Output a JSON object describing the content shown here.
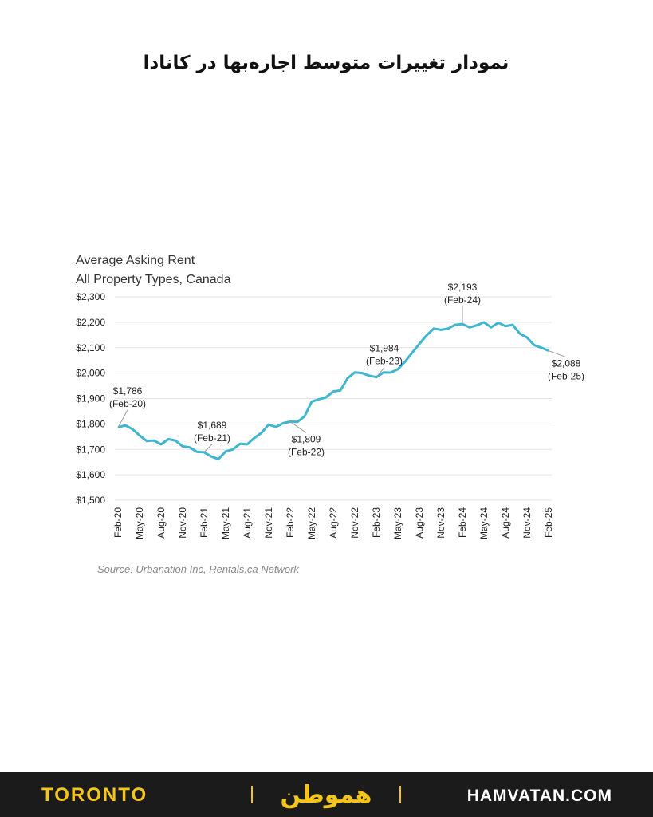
{
  "header": {
    "title": "نمودار تغییرات متوسط اجاره‌بها در کانادا"
  },
  "chart_data": {
    "type": "line",
    "title": "Average Asking Rent",
    "subtitle": "All Property Types, Canada",
    "categories": [
      "Feb-20",
      null,
      null,
      "May-20",
      null,
      null,
      "Aug-20",
      null,
      null,
      "Nov-20",
      null,
      null,
      "Feb-21",
      null,
      null,
      "May-21",
      null,
      null,
      "Aug-21",
      null,
      null,
      "Nov-21",
      null,
      null,
      "Feb-22",
      null,
      null,
      "May-22",
      null,
      null,
      "Aug-22",
      null,
      null,
      "Nov-22",
      null,
      null,
      "Feb-23",
      null,
      null,
      "May-23",
      null,
      null,
      "Aug-23",
      null,
      null,
      "Nov-23",
      null,
      null,
      "Feb-24",
      null,
      null,
      "May-24",
      null,
      null,
      "Aug-24",
      null,
      null,
      "Nov-24",
      null,
      null,
      "Feb-25"
    ],
    "series": [
      {
        "name": "Average Asking Rent",
        "color": "#3fb6d0",
        "values": [
          1786,
          1795,
          1780,
          1755,
          1733,
          1735,
          1720,
          1740,
          1735,
          1712,
          1708,
          1690,
          1689,
          1672,
          1662,
          1692,
          1700,
          1722,
          1720,
          1745,
          1765,
          1798,
          1788,
          1803,
          1809,
          1808,
          1830,
          1888,
          1897,
          1905,
          1928,
          1932,
          1980,
          2003,
          2000,
          1990,
          1984,
          2003,
          2002,
          2015,
          2045,
          2080,
          2115,
          2148,
          2175,
          2170,
          2175,
          2190,
          2193,
          2180,
          2188,
          2200,
          2180,
          2198,
          2185,
          2190,
          2155,
          2140,
          2110,
          2100,
          2088
        ]
      }
    ],
    "ylim": [
      1500,
      2300
    ],
    "yticks": [
      {
        "value": 1500,
        "label": "$1,500"
      },
      {
        "value": 1600,
        "label": "$1,600"
      },
      {
        "value": 1700,
        "label": "$1,700"
      },
      {
        "value": 1800,
        "label": "$1,800"
      },
      {
        "value": 1900,
        "label": "$1,900"
      },
      {
        "value": 2000,
        "label": "$2,000"
      },
      {
        "value": 2100,
        "label": "$2,100"
      },
      {
        "value": 2200,
        "label": "$2,200"
      },
      {
        "value": 2300,
        "label": "$2,300"
      }
    ],
    "grid": true,
    "annotations": [
      {
        "text": "$1,786",
        "date": "(Feb-20)",
        "x": "Feb-20"
      },
      {
        "text": "$1,689",
        "date": "(Feb-21)",
        "x": "Feb-21"
      },
      {
        "text": "$1,809",
        "date": "(Feb-22)",
        "x": "Feb-22"
      },
      {
        "text": "$1,984",
        "date": "(Feb-23)",
        "x": "Feb-23"
      },
      {
        "text": "$2,193",
        "date": "(Feb-24)",
        "x": "Feb-24"
      },
      {
        "text": "$2,088",
        "date": "(Feb-25)",
        "x": "Feb-25"
      }
    ],
    "source": "Source: Urbanation Inc, Rentals.ca Network"
  },
  "footer": {
    "city": "TORONTO",
    "logo": "هموطن",
    "site": "HAMVATAN.COM"
  }
}
